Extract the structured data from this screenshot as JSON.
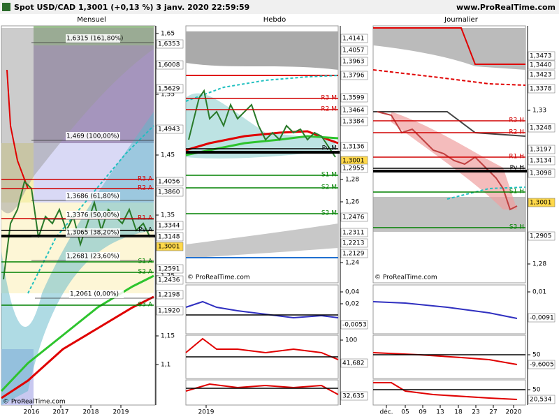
{
  "header": {
    "title": "Spot USD/CAD 1,3001 (+0,13 %) 3 janv. 2020 22:59:59",
    "url": "www.ProRealTime.com"
  },
  "panels": [
    {
      "title": "Mensuel",
      "watermark": "© ProRealTime.com",
      "axis_ticks": [
        "1,65",
        "1,55",
        "1,45",
        "1,35",
        "1,25",
        "1,15",
        "1,1"
      ],
      "price_labels": [
        {
          "text": "1,6353",
          "color": "#ffffff"
        },
        {
          "text": "1,6008",
          "color": "#ffffff"
        },
        {
          "text": "1,5629",
          "color": "#ffffff"
        },
        {
          "text": "1,4943",
          "color": "#ffffff"
        },
        {
          "text": "1,4056",
          "color": "#ffffff"
        },
        {
          "text": "1,3860",
          "color": "#ffffff"
        },
        {
          "text": "1,3344",
          "color": "#ffffff"
        },
        {
          "text": "1,3148",
          "color": "#ffffff"
        },
        {
          "text": "1,3001",
          "color": "#ffd84a"
        },
        {
          "text": "1,2591",
          "color": "#ffffff"
        },
        {
          "text": "1,2436",
          "color": "#ffffff"
        },
        {
          "text": "1,2198",
          "color": "#ffffff"
        },
        {
          "text": "1,1920",
          "color": "#ffffff"
        }
      ],
      "fib_labels": [
        "1,6315 (161,80%)",
        "1,469 (100,00%)",
        "1,3686 (61,80%)",
        "1,3376 (50,00%)",
        "1,3065 (38,20%)",
        "1,2681 (23,60%)",
        "1,2061 (0,00%)"
      ],
      "levels": [
        {
          "text": "R3 A",
          "color": "#d00000"
        },
        {
          "text": "R2 A",
          "color": "#d00000"
        },
        {
          "text": "R1 A",
          "color": "#d00000"
        },
        {
          "text": "Pv A",
          "color": "#000000"
        },
        {
          "text": "S1 A",
          "color": "#008000"
        },
        {
          "text": "S2 A",
          "color": "#008000"
        },
        {
          "text": "S3 A",
          "color": "#008000"
        }
      ],
      "x_labels": [
        "2016",
        "2017",
        "2018",
        "2019"
      ]
    },
    {
      "title": "Hebdo",
      "watermark": "© ProRealTime.com",
      "axis_ticks": [
        "1,28",
        "1,26",
        "1,24",
        "0,04",
        "0,02",
        "100"
      ],
      "price_labels": [
        {
          "text": "1,4141",
          "color": "#ffffff"
        },
        {
          "text": "1,4057",
          "color": "#ffffff"
        },
        {
          "text": "1,3963",
          "color": "#ffffff"
        },
        {
          "text": "1,3796",
          "color": "#ffffff"
        },
        {
          "text": "1,3599",
          "color": "#ffffff"
        },
        {
          "text": "1,3464",
          "color": "#ffffff"
        },
        {
          "text": "1,3384",
          "color": "#ffffff"
        },
        {
          "text": "1,3136",
          "color": "#ffffff"
        },
        {
          "text": "1,3001",
          "color": "#ffd84a"
        },
        {
          "text": "1,2955",
          "color": "#ffffff"
        },
        {
          "text": "1,2476",
          "color": "#ffffff"
        },
        {
          "text": "1,2311",
          "color": "#ffffff"
        },
        {
          "text": "1,2213",
          "color": "#ffffff"
        },
        {
          "text": "1,2129",
          "color": "#ffffff"
        },
        {
          "text": "-0,0053",
          "color": "#ffffff"
        },
        {
          "text": "41,682",
          "color": "#ffffff"
        },
        {
          "text": "32,635",
          "color": "#ffffff"
        }
      ],
      "fib_labels": [],
      "levels": [
        {
          "text": "R3 M",
          "color": "#d00000"
        },
        {
          "text": "R2 M",
          "color": "#d00000"
        },
        {
          "text": "Pv M",
          "color": "#000000"
        },
        {
          "text": "S1 M",
          "color": "#008000"
        },
        {
          "text": "S2 M",
          "color": "#008000"
        },
        {
          "text": "S3 M",
          "color": "#008000"
        }
      ],
      "x_labels": [
        "2019"
      ]
    },
    {
      "title": "Journalier",
      "watermark": "© ProRealTime.com",
      "axis_ticks": [
        "1,33",
        "1,28",
        "0,01",
        "50",
        "50"
      ],
      "price_labels": [
        {
          "text": "1,3473",
          "color": "#ffffff"
        },
        {
          "text": "1,3440",
          "color": "#ffffff"
        },
        {
          "text": "1,3423",
          "color": "#ffffff"
        },
        {
          "text": "1,3378",
          "color": "#ffffff"
        },
        {
          "text": "1,3248",
          "color": "#ffffff"
        },
        {
          "text": "1,3197",
          "color": "#ffffff"
        },
        {
          "text": "1,3134",
          "color": "#ffffff"
        },
        {
          "text": "1,3098",
          "color": "#ffffff"
        },
        {
          "text": "1,3001",
          "color": "#ffd84a"
        },
        {
          "text": "1,2905",
          "color": "#ffffff"
        },
        {
          "text": "-0,0091",
          "color": "#ffffff"
        },
        {
          "text": "-9,6005",
          "color": "#ffffff"
        },
        {
          "text": "20,534",
          "color": "#ffffff"
        }
      ],
      "fib_labels": [],
      "levels": [
        {
          "text": "R3 H",
          "color": "#d00000"
        },
        {
          "text": "R2 H",
          "color": "#d00000"
        },
        {
          "text": "R1 H",
          "color": "#d00000"
        },
        {
          "text": "Pv H",
          "color": "#000000"
        },
        {
          "text": "S1 H",
          "color": "#008000"
        },
        {
          "text": "S3 H",
          "color": "#008000"
        }
      ],
      "x_labels": [
        "déc.",
        "05",
        "09",
        "13",
        "18",
        "23",
        "27",
        "2020"
      ]
    }
  ]
}
